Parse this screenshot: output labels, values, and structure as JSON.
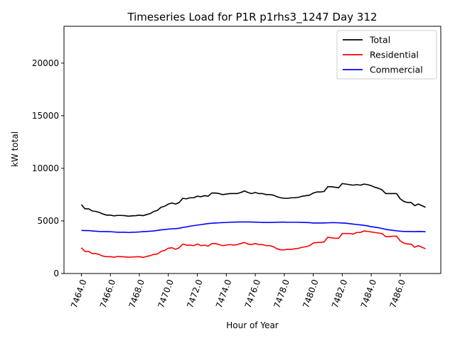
{
  "chart_data": {
    "type": "line",
    "title": "Timeseries Load for P1R p1rhs3_1247  Day 312",
    "xlabel": "Hour of Year",
    "ylabel": "kW total",
    "xlim": [
      7462.8,
      7488.8
    ],
    "ylim": [
      0,
      23500
    ],
    "x_ticks": [
      7464,
      7466,
      7468,
      7470,
      7472,
      7474,
      7476,
      7478,
      7480,
      7482,
      7484,
      7486
    ],
    "x_tick_labels": [
      "7464.0",
      "7466.0",
      "7468.0",
      "7470.0",
      "7472.0",
      "7474.0",
      "7476.0",
      "7478.0",
      "7480.0",
      "7482.0",
      "7484.0",
      "7486.0"
    ],
    "y_ticks": [
      0,
      5000,
      10000,
      15000,
      20000
    ],
    "y_tick_labels": [
      "0",
      "5000",
      "10000",
      "15000",
      "20000"
    ],
    "legend_position": "top-right",
    "x_start": 7464.0,
    "x_step": 0.25,
    "series": [
      {
        "name": "Total",
        "color": "#000000",
        "values": [
          6550,
          6150,
          6150,
          5950,
          5900,
          5800,
          5650,
          5550,
          5550,
          5480,
          5520,
          5520,
          5500,
          5450,
          5480,
          5500,
          5550,
          5500,
          5600,
          5700,
          5900,
          6000,
          6300,
          6400,
          6600,
          6700,
          6600,
          6750,
          7150,
          7100,
          7200,
          7200,
          7350,
          7300,
          7400,
          7350,
          7650,
          7650,
          7600,
          7500,
          7550,
          7600,
          7600,
          7600,
          7700,
          7850,
          7700,
          7600,
          7700,
          7600,
          7600,
          7500,
          7500,
          7450,
          7300,
          7200,
          7150,
          7150,
          7200,
          7200,
          7250,
          7350,
          7400,
          7450,
          7650,
          7750,
          7750,
          7800,
          8250,
          8250,
          8200,
          8150,
          8550,
          8500,
          8450,
          8400,
          8450,
          8400,
          8500,
          8450,
          8350,
          8200,
          8100,
          7950,
          7600,
          7600,
          7600,
          7600,
          7100,
          6850,
          6750,
          6750,
          6450,
          6600,
          6450,
          6300
        ]
      },
      {
        "name": "Residential",
        "color": "#ff0000",
        "values": [
          2450,
          2100,
          2100,
          1900,
          1900,
          1800,
          1650,
          1600,
          1600,
          1550,
          1620,
          1600,
          1580,
          1550,
          1570,
          1580,
          1600,
          1530,
          1620,
          1700,
          1820,
          1850,
          2100,
          2200,
          2400,
          2450,
          2300,
          2450,
          2800,
          2700,
          2700,
          2650,
          2800,
          2650,
          2700,
          2600,
          2850,
          2850,
          2750,
          2650,
          2700,
          2750,
          2700,
          2750,
          2850,
          2950,
          2800,
          2750,
          2850,
          2750,
          2750,
          2650,
          2650,
          2550,
          2350,
          2250,
          2250,
          2300,
          2300,
          2350,
          2400,
          2500,
          2550,
          2650,
          2900,
          2950,
          2950,
          3000,
          3450,
          3400,
          3350,
          3350,
          3800,
          3800,
          3800,
          3750,
          3900,
          3900,
          4050,
          4000,
          3950,
          3900,
          3850,
          3800,
          3500,
          3500,
          3550,
          3550,
          3100,
          2900,
          2800,
          2800,
          2500,
          2650,
          2500,
          2350
        ]
      },
      {
        "name": "Commercial",
        "color": "#0000ff",
        "values": [
          4100,
          4080,
          4080,
          4050,
          4020,
          4000,
          3990,
          3980,
          3970,
          3950,
          3920,
          3920,
          3920,
          3900,
          3920,
          3930,
          3950,
          3980,
          4000,
          4020,
          4050,
          4100,
          4150,
          4180,
          4220,
          4250,
          4270,
          4300,
          4380,
          4430,
          4500,
          4550,
          4600,
          4650,
          4700,
          4750,
          4780,
          4800,
          4820,
          4840,
          4850,
          4870,
          4880,
          4890,
          4900,
          4900,
          4900,
          4890,
          4880,
          4870,
          4860,
          4850,
          4850,
          4860,
          4870,
          4880,
          4880,
          4870,
          4870,
          4870,
          4870,
          4860,
          4850,
          4830,
          4800,
          4800,
          4800,
          4810,
          4820,
          4830,
          4830,
          4820,
          4800,
          4780,
          4740,
          4700,
          4660,
          4620,
          4580,
          4530,
          4450,
          4400,
          4350,
          4280,
          4200,
          4150,
          4100,
          4060,
          4020,
          4000,
          4000,
          3990,
          3980,
          4000,
          3990,
          3970
        ]
      }
    ]
  }
}
